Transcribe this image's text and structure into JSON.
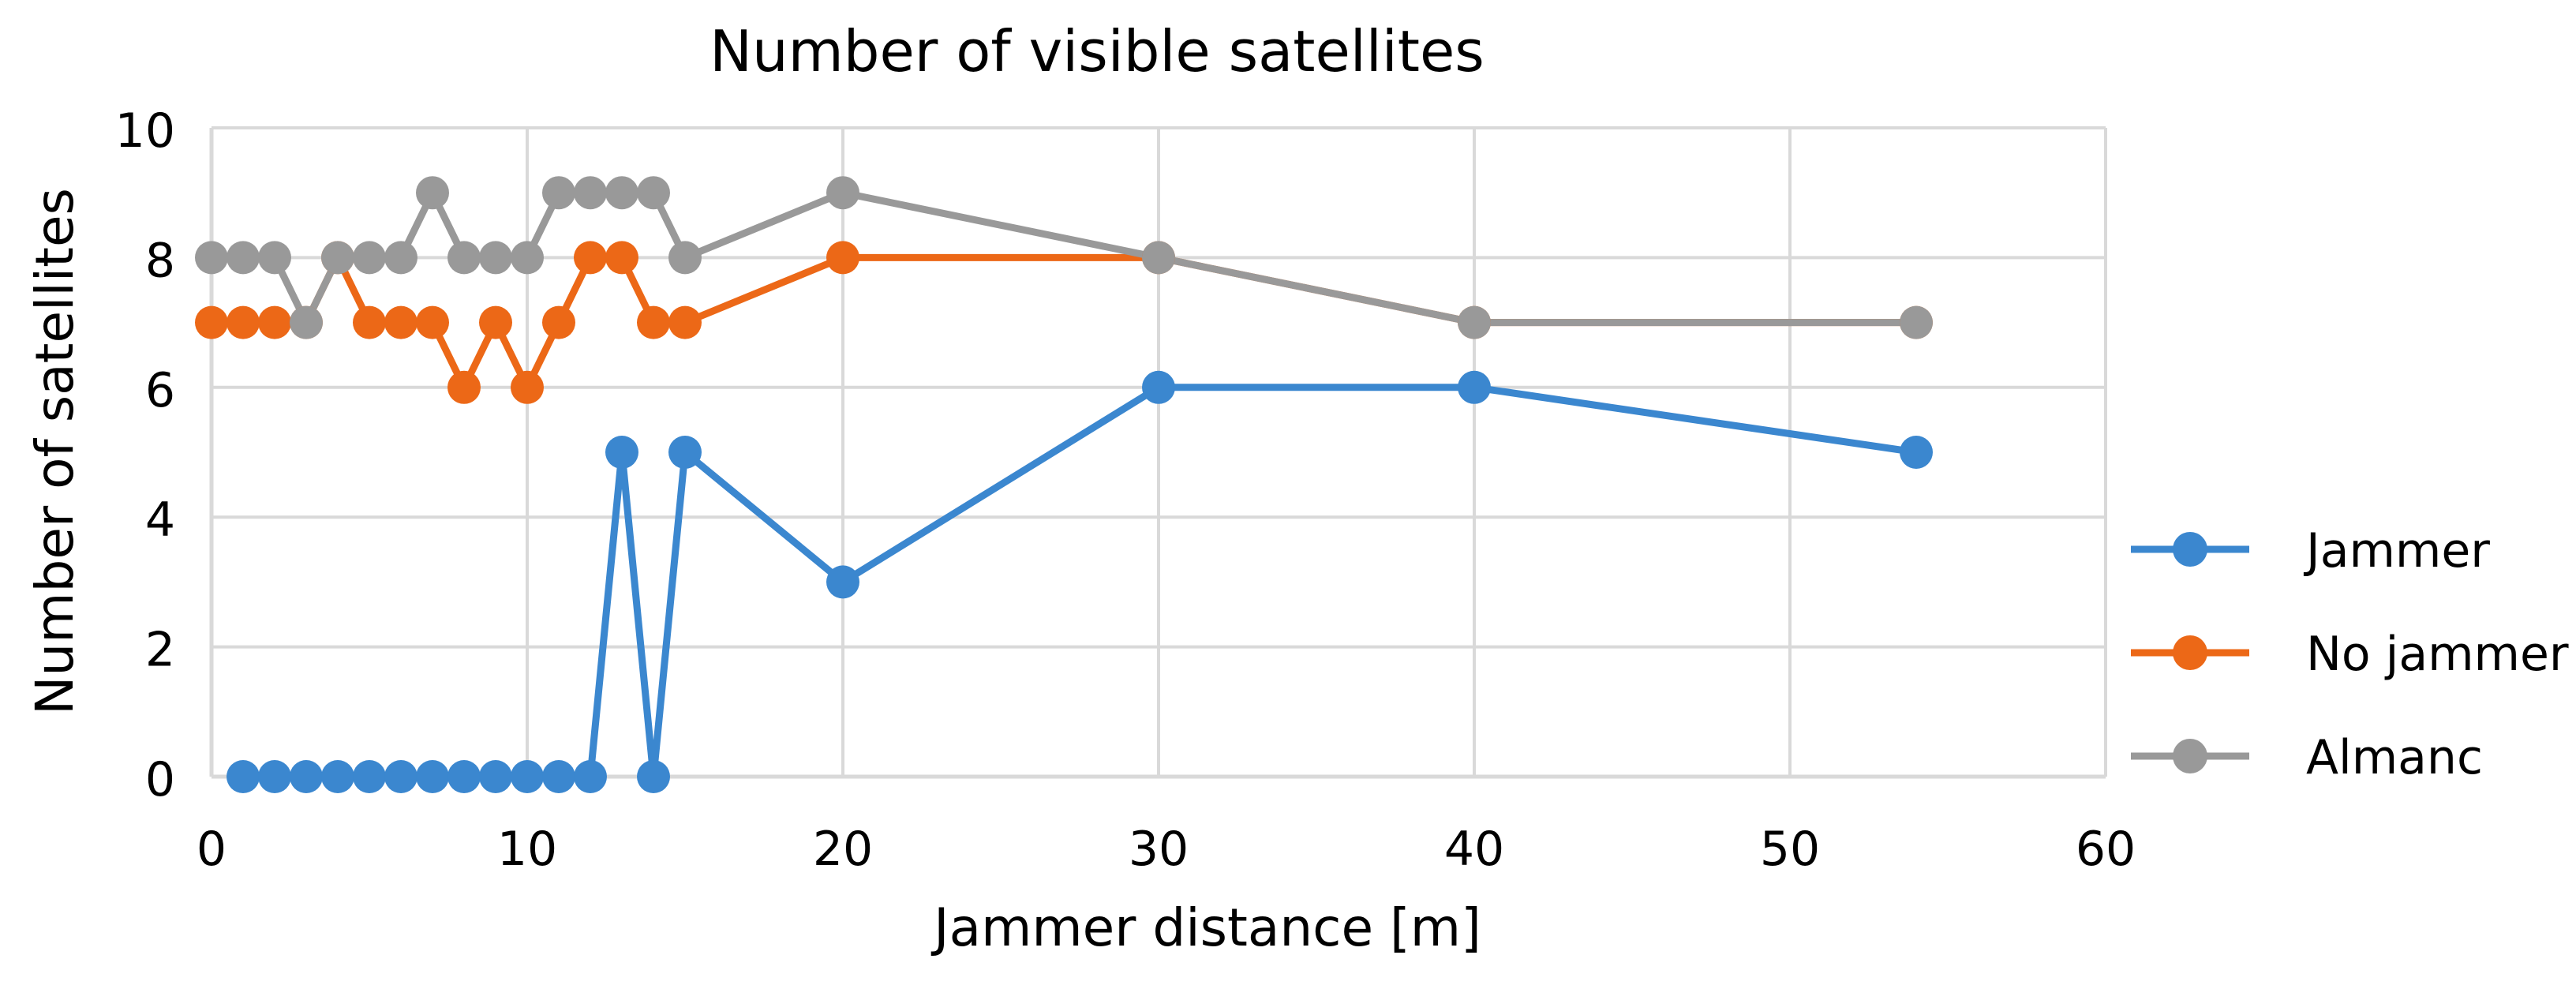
{
  "chart_data": {
    "type": "line",
    "title": "Number of visible satellites",
    "xlabel": "Jammer distance [m]",
    "ylabel": "Number of satellites",
    "xlim": [
      0,
      60
    ],
    "ylim": [
      0,
      10
    ],
    "xticks": [
      0,
      10,
      20,
      30,
      40,
      50,
      60
    ],
    "yticks": [
      0,
      2,
      4,
      6,
      8,
      10
    ],
    "grid": true,
    "legend_position": "right",
    "series": [
      {
        "name": "Jammer",
        "color": "#3B87CF",
        "x": [
          1,
          2,
          3,
          4,
          5,
          6,
          7,
          8,
          9,
          10,
          11,
          12,
          13,
          14,
          15,
          20,
          30,
          40,
          54
        ],
        "y": [
          0,
          0,
          0,
          0,
          0,
          0,
          0,
          0,
          0,
          0,
          0,
          0,
          5,
          0,
          5,
          3,
          6,
          6,
          5
        ]
      },
      {
        "name": "No jammer",
        "color": "#EC6817",
        "x": [
          0,
          1,
          2,
          3,
          4,
          5,
          6,
          7,
          8,
          9,
          10,
          11,
          12,
          13,
          14,
          15,
          20,
          30,
          40,
          54
        ],
        "y": [
          7,
          7,
          7,
          7,
          8,
          7,
          7,
          7,
          6,
          7,
          6,
          7,
          8,
          8,
          7,
          7,
          8,
          8,
          7,
          7
        ]
      },
      {
        "name": "Almanc",
        "color": "#999999",
        "x": [
          0,
          1,
          2,
          3,
          4,
          5,
          6,
          7,
          8,
          9,
          10,
          11,
          12,
          13,
          14,
          15,
          20,
          30,
          40,
          54
        ],
        "y": [
          8,
          8,
          8,
          7,
          8,
          8,
          8,
          9,
          8,
          8,
          8,
          9,
          9,
          9,
          9,
          8,
          9,
          8,
          7,
          7
        ]
      }
    ]
  }
}
